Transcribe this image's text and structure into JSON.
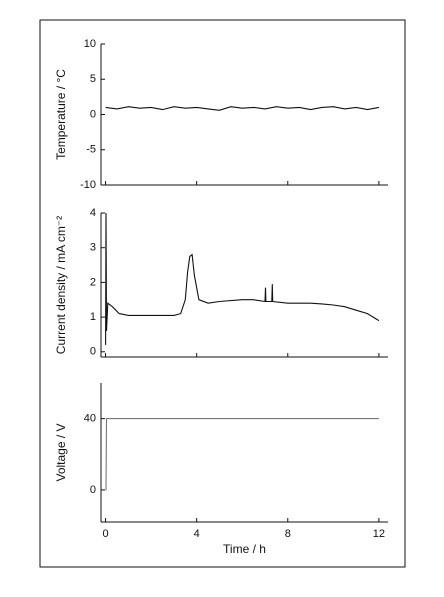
{
  "chart_data": [
    {
      "type": "line",
      "ylabel": "Temperature / °C",
      "color": "#111111",
      "x": [
        0,
        0.5,
        1,
        1.5,
        2,
        2.5,
        3,
        3.5,
        4,
        4.5,
        5,
        5.5,
        6,
        6.5,
        7,
        7.5,
        8,
        8.5,
        9,
        9.5,
        10,
        10.5,
        11,
        11.5,
        12
      ],
      "values": [
        1,
        0.8,
        1.1,
        0.9,
        1,
        0.7,
        1.1,
        0.9,
        1,
        0.8,
        0.6,
        1.1,
        0.9,
        1,
        0.8,
        1.1,
        0.9,
        1,
        0.7,
        1,
        1.1,
        0.8,
        1,
        0.7,
        1
      ],
      "xlim": [
        -0.2,
        12.4
      ],
      "xticks": [
        0,
        4,
        8,
        12
      ],
      "ylim": [
        -10,
        10
      ],
      "yticks": [
        -10,
        -5,
        0,
        5,
        10
      ]
    },
    {
      "type": "line",
      "ylabel": "Current density / mA cm⁻²",
      "color": "#111111",
      "x": [
        0,
        0.02,
        0.04,
        0.1,
        0.3,
        0.6,
        1,
        2,
        3,
        3.3,
        3.5,
        3.6,
        3.7,
        3.8,
        3.9,
        4.1,
        4.5,
        5,
        6,
        6.5,
        7,
        7.02,
        7.04,
        7.3,
        7.32,
        7.34,
        8,
        8.5,
        9,
        9.5,
        10,
        10.5,
        11,
        11.5,
        12
      ],
      "values": [
        0.2,
        4,
        0.6,
        1.4,
        1.3,
        1.1,
        1.05,
        1.05,
        1.05,
        1.1,
        1.5,
        2.3,
        2.75,
        2.8,
        2.2,
        1.5,
        1.4,
        1.45,
        1.5,
        1.5,
        1.45,
        1.85,
        1.45,
        1.45,
        1.95,
        1.45,
        1.4,
        1.4,
        1.4,
        1.38,
        1.35,
        1.3,
        1.2,
        1.1,
        0.9
      ],
      "xlim": [
        -0.2,
        12.4
      ],
      "xticks": [
        0,
        4,
        8,
        12
      ],
      "ylim": [
        -0.15,
        4
      ],
      "yticks": [
        0,
        1,
        2,
        3,
        4
      ]
    },
    {
      "type": "line",
      "ylabel": "Voltage / V",
      "xlabel": "Time / h",
      "color": "#777777",
      "x": [
        0,
        0.02,
        0.04,
        12
      ],
      "values": [
        0,
        0,
        40,
        40
      ],
      "xlim": [
        -0.2,
        12.4
      ],
      "xticks": [
        0,
        4,
        8,
        12
      ],
      "ylim": [
        -18,
        60
      ],
      "yticks": [
        0,
        40
      ]
    }
  ]
}
